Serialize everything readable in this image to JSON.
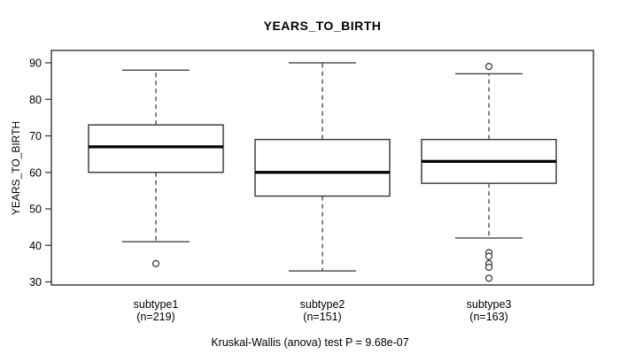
{
  "chart_data": {
    "type": "boxplot",
    "title": "YEARS_TO_BIRTH",
    "ylabel": "YEARS_TO_BIRTH",
    "caption": "Kruskal-Wallis (anova) test P = 9.68e-07",
    "y_axis": {
      "min": 30,
      "max": 90,
      "ticks": [
        30,
        40,
        50,
        60,
        70,
        80,
        90
      ]
    },
    "grid": "off",
    "legend": "none",
    "groups": [
      {
        "label": "subtype1",
        "n_label": "(n=219)",
        "n": 219,
        "whisker_low": 41,
        "q1": 60,
        "median": 67,
        "q3": 73,
        "whisker_high": 88,
        "outliers": [
          35
        ]
      },
      {
        "label": "subtype2",
        "n_label": "(n=151)",
        "n": 151,
        "whisker_low": 33,
        "q1": 53.5,
        "median": 60,
        "q3": 69,
        "whisker_high": 90,
        "outliers": []
      },
      {
        "label": "subtype3",
        "n_label": "(n=163)",
        "n": 163,
        "whisker_low": 42,
        "q1": 57,
        "median": 63,
        "q3": 69,
        "whisker_high": 87,
        "outliers": [
          89,
          38,
          37,
          35,
          34,
          31
        ]
      }
    ],
    "colors": {
      "line": "#333333",
      "median": "#000000",
      "box_fill": "#ffffff",
      "background": "#ffffff",
      "text": "#000000"
    }
  }
}
